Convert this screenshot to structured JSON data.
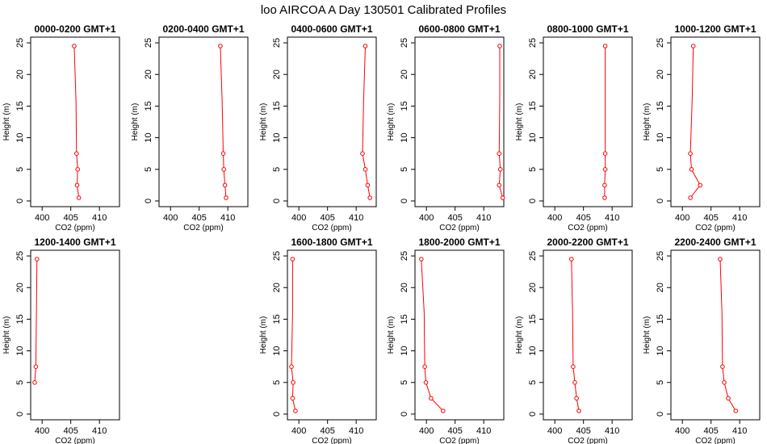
{
  "figure": {
    "title": "loo AIRCOA A  Day 130501  Calibrated Profiles"
  },
  "chart_data": [
    {
      "type": "line",
      "title": "0000-0200 GMT+1",
      "xlabel": "CO2 (ppm)",
      "ylabel": "Height (m)",
      "xlim": [
        398,
        413.5
      ],
      "ylim": [
        0,
        25
      ],
      "xticks": [
        400,
        405,
        410
      ],
      "yticks": [
        0,
        5,
        10,
        15,
        20,
        25
      ],
      "line_color": "#ff0000",
      "series": [
        {
          "x": [
            406.4,
            406.1,
            406.2,
            406.0,
            405.9,
            405.6
          ],
          "y": [
            0.5,
            2.5,
            5,
            7.5,
            16,
            24.5
          ]
        }
      ]
    },
    {
      "type": "line",
      "title": "0200-0400 GMT+1",
      "xlabel": "CO2 (ppm)",
      "ylabel": "Height (m)",
      "xlim": [
        398,
        413.5
      ],
      "ylim": [
        0,
        25
      ],
      "xticks": [
        400,
        405,
        410
      ],
      "yticks": [
        0,
        5,
        10,
        15,
        20,
        25
      ],
      "line_color": "#ff0000",
      "series": [
        {
          "x": [
            409.7,
            409.5,
            409.3,
            409.2,
            409.0,
            408.7
          ],
          "y": [
            0.5,
            2.5,
            5,
            7.5,
            16,
            24.5
          ]
        }
      ]
    },
    {
      "type": "line",
      "title": "0400-0600 GMT+1",
      "xlabel": "CO2 (ppm)",
      "ylabel": "Height (m)",
      "xlim": [
        398,
        413.5
      ],
      "ylim": [
        0,
        25
      ],
      "xticks": [
        400,
        405,
        410
      ],
      "yticks": [
        0,
        5,
        10,
        15,
        20,
        25
      ],
      "line_color": "#ff0000",
      "series": [
        {
          "x": [
            412.4,
            412.0,
            411.6,
            411.1,
            411.3,
            411.6
          ],
          "y": [
            0.5,
            2.5,
            5,
            7.5,
            16,
            24.5
          ]
        }
      ]
    },
    {
      "type": "line",
      "title": "0600-0800 GMT+1",
      "xlabel": "CO2 (ppm)",
      "ylabel": "Height (m)",
      "xlim": [
        398,
        413.5
      ],
      "ylim": [
        0,
        25
      ],
      "xticks": [
        400,
        405,
        410
      ],
      "yticks": [
        0,
        5,
        10,
        15,
        20,
        25
      ],
      "line_color": "#ff0000",
      "series": [
        {
          "x": [
            413.3,
            412.7,
            412.9,
            412.7,
            412.8,
            412.8
          ],
          "y": [
            0.5,
            2.5,
            5,
            7.5,
            16,
            24.5
          ]
        }
      ]
    },
    {
      "type": "line",
      "title": "0800-1000 GMT+1",
      "xlabel": "CO2 (ppm)",
      "ylabel": "Height (m)",
      "xlim": [
        398,
        413.5
      ],
      "ylim": [
        0,
        25
      ],
      "xticks": [
        400,
        405,
        410
      ],
      "yticks": [
        0,
        5,
        10,
        15,
        20,
        25
      ],
      "line_color": "#ff0000",
      "series": [
        {
          "x": [
            408.7,
            408.7,
            408.8,
            408.8,
            408.8,
            408.8
          ],
          "y": [
            0.5,
            2.5,
            5,
            7.5,
            16,
            24.5
          ]
        }
      ]
    },
    {
      "type": "line",
      "title": "1000-1200 GMT+1",
      "xlabel": "CO2 (ppm)",
      "ylabel": "Height (m)",
      "xlim": [
        398,
        413.5
      ],
      "ylim": [
        0,
        25
      ],
      "xticks": [
        400,
        405,
        410
      ],
      "yticks": [
        0,
        5,
        10,
        15,
        20,
        25
      ],
      "line_color": "#ff0000",
      "series": [
        {
          "x": [
            401.4,
            403.1,
            401.6,
            401.4,
            401.7,
            401.9
          ],
          "y": [
            0.5,
            2.5,
            5,
            7.5,
            16,
            24.5
          ]
        }
      ]
    },
    {
      "type": "line",
      "title": "1200-1400 GMT+1",
      "xlabel": "CO2 (ppm)",
      "ylabel": "Height (m)",
      "xlim": [
        398,
        413.5
      ],
      "ylim": [
        0,
        25
      ],
      "xticks": [
        400,
        405,
        410
      ],
      "yticks": [
        0,
        5,
        10,
        15,
        20,
        25
      ],
      "line_color": "#ff0000",
      "series": [
        {
          "x": [
            398.7,
            398.9,
            399.0,
            399.1
          ],
          "y": [
            5,
            7.5,
            16,
            24.5
          ]
        }
      ]
    },
    {
      "type": "line",
      "title": "1600-1800 GMT+1",
      "xlabel": "CO2 (ppm)",
      "ylabel": "Height (m)",
      "xlim": [
        398,
        413.5
      ],
      "ylim": [
        0,
        25
      ],
      "xticks": [
        400,
        405,
        410
      ],
      "yticks": [
        0,
        5,
        10,
        15,
        20,
        25
      ],
      "line_color": "#ff0000",
      "series": [
        {
          "x": [
            399.4,
            398.9,
            399.0,
            398.7,
            398.9,
            398.9
          ],
          "y": [
            0.5,
            2.5,
            5,
            7.5,
            16,
            24.5
          ]
        }
      ]
    },
    {
      "type": "line",
      "title": "1800-2000 GMT+1",
      "xlabel": "CO2 (ppm)",
      "ylabel": "Height (m)",
      "xlim": [
        398,
        413.5
      ],
      "ylim": [
        0,
        25
      ],
      "xticks": [
        400,
        405,
        410
      ],
      "yticks": [
        0,
        5,
        10,
        15,
        20,
        25
      ],
      "line_color": "#ff0000",
      "series": [
        {
          "x": [
            402.9,
            400.8,
            399.9,
            399.7,
            399.6,
            399.1
          ],
          "y": [
            0.5,
            2.5,
            5,
            7.5,
            16,
            24.5
          ]
        }
      ]
    },
    {
      "type": "line",
      "title": "2000-2200 GMT+1",
      "xlabel": "CO2 (ppm)",
      "ylabel": "Height (m)",
      "xlim": [
        398,
        413.5
      ],
      "ylim": [
        0,
        25
      ],
      "xticks": [
        400,
        405,
        410
      ],
      "yticks": [
        0,
        5,
        10,
        15,
        20,
        25
      ],
      "line_color": "#ff0000",
      "series": [
        {
          "x": [
            404.2,
            403.8,
            403.5,
            403.2,
            403.1,
            402.9
          ],
          "y": [
            0.5,
            2.5,
            5,
            7.5,
            16,
            24.5
          ]
        }
      ]
    },
    {
      "type": "line",
      "title": "2200-2400 GMT+1",
      "xlabel": "CO2 (ppm)",
      "ylabel": "Height (m)",
      "xlim": [
        398,
        413.5
      ],
      "ylim": [
        0,
        25
      ],
      "xticks": [
        400,
        405,
        410
      ],
      "yticks": [
        0,
        5,
        10,
        15,
        20,
        25
      ],
      "line_color": "#ff0000",
      "series": [
        {
          "x": [
            409.3,
            408.0,
            407.3,
            407.0,
            406.9,
            406.6
          ],
          "y": [
            0.5,
            2.5,
            5,
            7.5,
            16,
            24.5
          ]
        }
      ]
    }
  ]
}
